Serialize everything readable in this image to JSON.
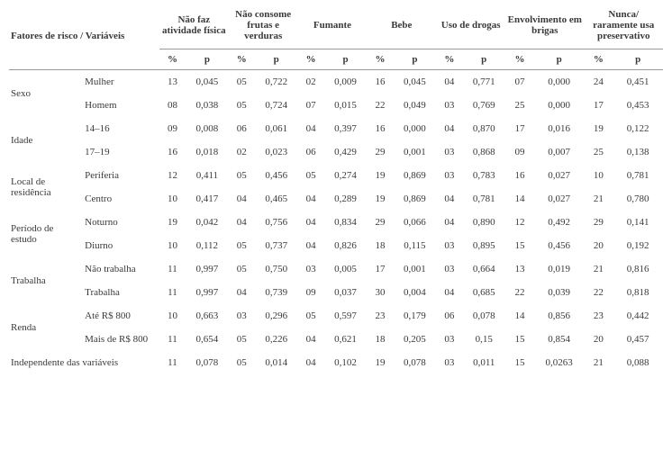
{
  "colors": {
    "text": "#3a3a3a",
    "border": "#999999",
    "background": "#ffffff"
  },
  "fontsize_body": 11,
  "fontsize_header": 11,
  "header": {
    "row_label": "Fatores de risco / Variáveis",
    "columns": [
      "Não faz atividade física",
      "Não consome frutas e verduras",
      "Fumante",
      "Bebe",
      "Uso de drogas",
      "Envolvimento em brigas",
      "Nunca/ raramente usa preservativo"
    ],
    "sub_pct": "%",
    "sub_p": "p"
  },
  "rows": [
    {
      "group": "Sexo",
      "sub": "Mulher",
      "v": [
        [
          "13",
          "0,045"
        ],
        [
          "05",
          "0,722"
        ],
        [
          "02",
          "0,009"
        ],
        [
          "16",
          "0,045"
        ],
        [
          "04",
          "0,771"
        ],
        [
          "07",
          "0,000"
        ],
        [
          "24",
          "0,451"
        ]
      ]
    },
    {
      "group": "",
      "sub": "Homem",
      "v": [
        [
          "08",
          "0,038"
        ],
        [
          "05",
          "0,724"
        ],
        [
          "07",
          "0,015"
        ],
        [
          "22",
          "0,049"
        ],
        [
          "03",
          "0,769"
        ],
        [
          "25",
          "0,000"
        ],
        [
          "17",
          "0,453"
        ]
      ]
    },
    {
      "group": "Idade",
      "sub": "14–16",
      "v": [
        [
          "09",
          "0,008"
        ],
        [
          "06",
          "0,061"
        ],
        [
          "04",
          "0,397"
        ],
        [
          "16",
          "0,000"
        ],
        [
          "04",
          "0,870"
        ],
        [
          "17",
          "0,016"
        ],
        [
          "19",
          "0,122"
        ]
      ]
    },
    {
      "group": "",
      "sub": "17–19",
      "v": [
        [
          "16",
          "0,018"
        ],
        [
          "02",
          "0,023"
        ],
        [
          "06",
          "0,429"
        ],
        [
          "29",
          "0,001"
        ],
        [
          "03",
          "0,868"
        ],
        [
          "09",
          "0,007"
        ],
        [
          "25",
          "0,138"
        ]
      ]
    },
    {
      "group": "Local de residência",
      "sub": "Periferia",
      "v": [
        [
          "12",
          "0,411"
        ],
        [
          "05",
          "0,456"
        ],
        [
          "05",
          "0,274"
        ],
        [
          "19",
          "0,869"
        ],
        [
          "03",
          "0,783"
        ],
        [
          "16",
          "0,027"
        ],
        [
          "10",
          "0,781"
        ]
      ]
    },
    {
      "group": "",
      "sub": "Centro",
      "v": [
        [
          "10",
          "0,417"
        ],
        [
          "04",
          "0,465"
        ],
        [
          "04",
          "0,289"
        ],
        [
          "19",
          "0,869"
        ],
        [
          "04",
          "0,781"
        ],
        [
          "14",
          "0,027"
        ],
        [
          "21",
          "0,780"
        ]
      ]
    },
    {
      "group": "Período de estudo",
      "sub": "Noturno",
      "v": [
        [
          "19",
          "0,042"
        ],
        [
          "04",
          "0,756"
        ],
        [
          "04",
          "0,834"
        ],
        [
          "29",
          "0,066"
        ],
        [
          "04",
          "0,890"
        ],
        [
          "12",
          "0,492"
        ],
        [
          "29",
          "0,141"
        ]
      ]
    },
    {
      "group": "",
      "sub": "Diurno",
      "v": [
        [
          "10",
          "0,112"
        ],
        [
          "05",
          "0,737"
        ],
        [
          "04",
          "0,826"
        ],
        [
          "18",
          "0,115"
        ],
        [
          "03",
          "0,895"
        ],
        [
          "15",
          "0,456"
        ],
        [
          "20",
          "0,192"
        ]
      ]
    },
    {
      "group": "Trabalha",
      "sub": "Não trabalha",
      "v": [
        [
          "11",
          "0,997"
        ],
        [
          "05",
          "0,750"
        ],
        [
          "03",
          "0,005"
        ],
        [
          "17",
          "0,001"
        ],
        [
          "03",
          "0,664"
        ],
        [
          "13",
          "0,019"
        ],
        [
          "21",
          "0,816"
        ]
      ]
    },
    {
      "group": "",
      "sub": "Trabalha",
      "v": [
        [
          "11",
          "0,997"
        ],
        [
          "04",
          "0,739"
        ],
        [
          "09",
          "0,037"
        ],
        [
          "30",
          "0,004"
        ],
        [
          "04",
          "0,685"
        ],
        [
          "22",
          "0,039"
        ],
        [
          "22",
          "0,818"
        ]
      ]
    },
    {
      "group": "Renda",
      "sub": "Até R$ 800",
      "v": [
        [
          "10",
          "0,663"
        ],
        [
          "03",
          "0,296"
        ],
        [
          "05",
          "0,597"
        ],
        [
          "23",
          "0,179"
        ],
        [
          "06",
          "0,078"
        ],
        [
          "14",
          "0,856"
        ],
        [
          "23",
          "0,442"
        ]
      ]
    },
    {
      "group": "",
      "sub": "Mais de R$ 800",
      "v": [
        [
          "11",
          "0,654"
        ],
        [
          "05",
          "0,226"
        ],
        [
          "04",
          "0,621"
        ],
        [
          "18",
          "0,205"
        ],
        [
          "03",
          "0,15"
        ],
        [
          "15",
          "0,854"
        ],
        [
          "20",
          "0,457"
        ]
      ]
    },
    {
      "group": "Independente das variáveis",
      "sub": "",
      "v": [
        [
          "11",
          "0,078"
        ],
        [
          "05",
          "0,014"
        ],
        [
          "04",
          "0,102"
        ],
        [
          "19",
          "0,078"
        ],
        [
          "03",
          "0,011"
        ],
        [
          "15",
          "0,0263"
        ],
        [
          "21",
          "0,088"
        ]
      ]
    }
  ]
}
